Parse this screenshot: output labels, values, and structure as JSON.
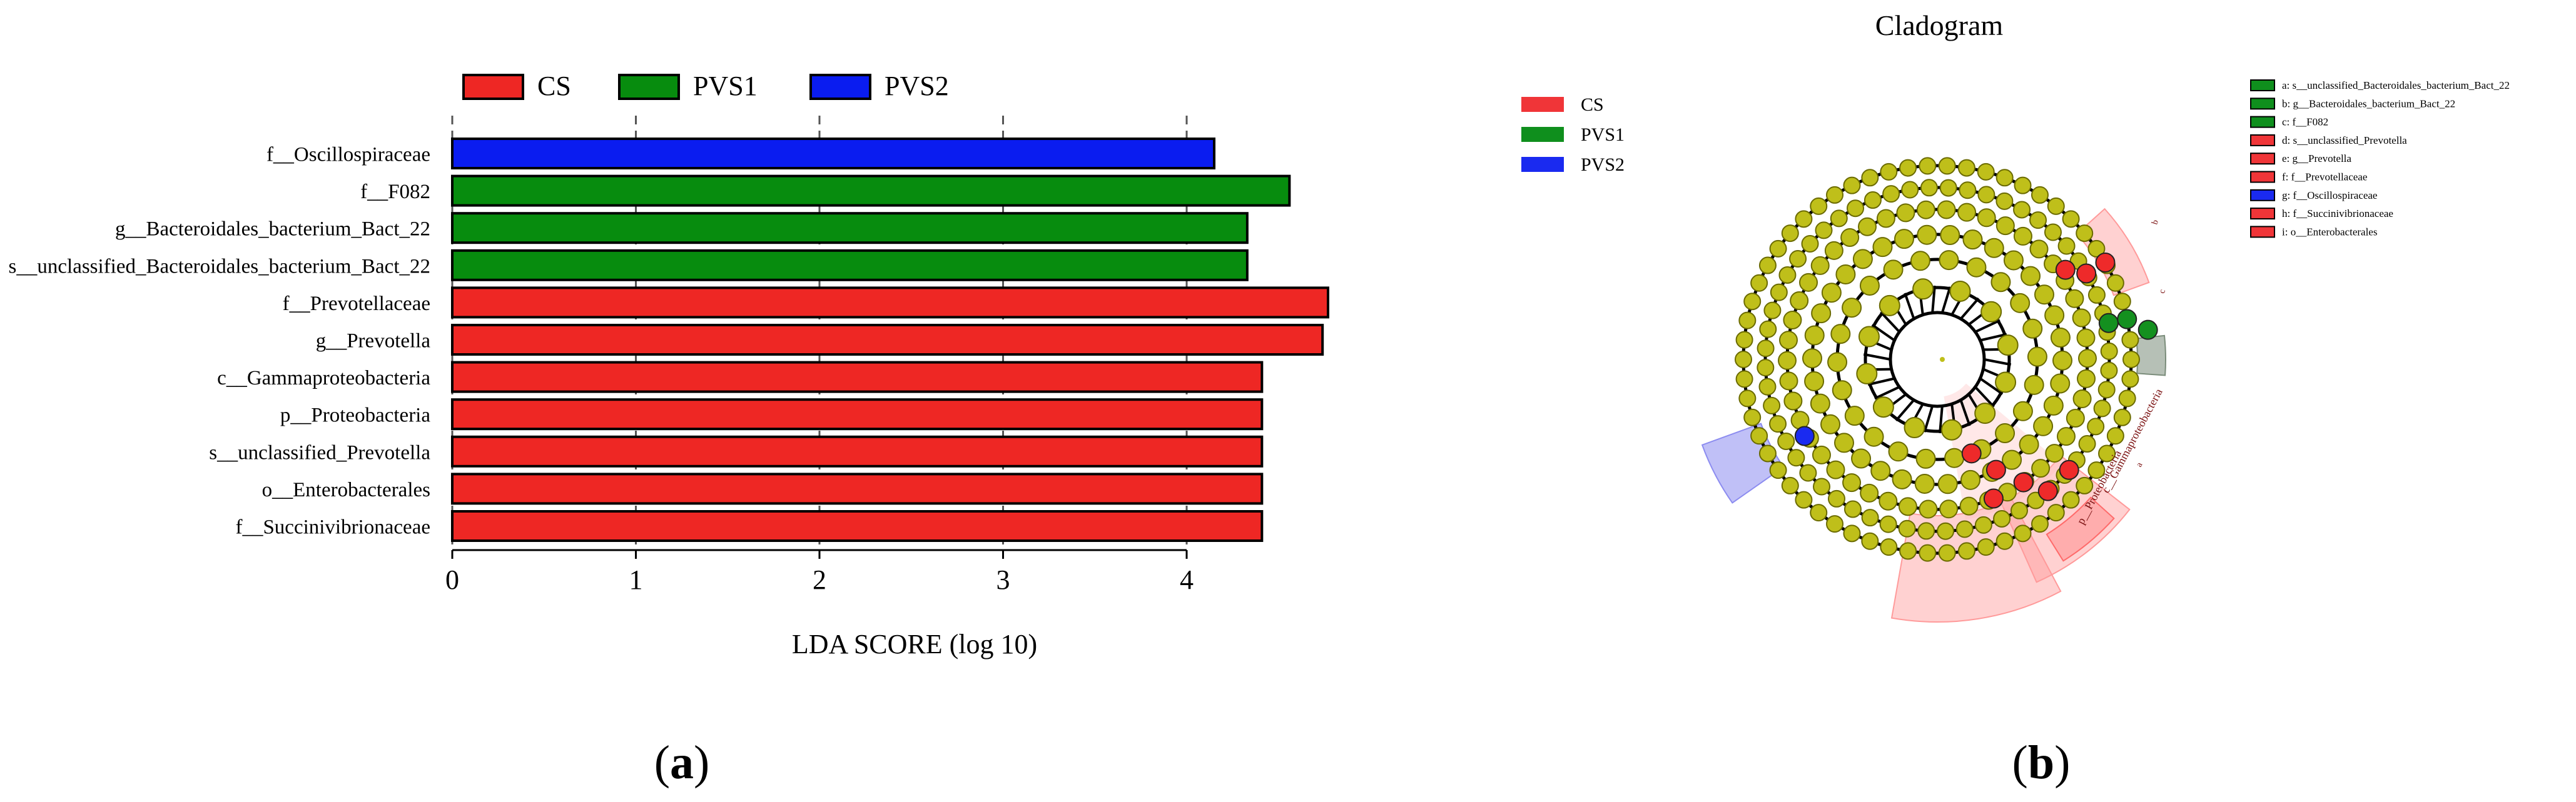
{
  "panel_a": {
    "label": "(a)",
    "legend": [
      {
        "name": "CS",
        "color": "#ee2724"
      },
      {
        "name": "PVS1",
        "color": "#078c0e"
      },
      {
        "name": "PVS2",
        "color": "#0a1cf0"
      }
    ],
    "xlabel": "LDA SCORE (log 10)"
  },
  "chart_data": {
    "type": "bar",
    "orientation": "horizontal",
    "xlabel": "LDA SCORE (log 10)",
    "xlim": [
      0,
      4.8
    ],
    "xticks": [
      "0",
      "1",
      "2",
      "3",
      "4"
    ],
    "grid": "vertical dashed",
    "legend_position": "top",
    "categories": [
      "f__Oscillospiraceae",
      "f__F082",
      "g__Bacteroidales_bacterium_Bact_22",
      "s__unclassified_Bacteroidales_bacterium_Bact_22",
      "f__Prevotellaceae",
      "g__Prevotella",
      "c__Gammaproteobacteria",
      "p__Proteobacteria",
      "s__unclassified_Prevotella",
      "o__Enterobacterales",
      "f__Succinivibrionaceae"
    ],
    "values": [
      4.15,
      4.56,
      4.33,
      4.33,
      4.77,
      4.74,
      4.41,
      4.41,
      4.41,
      4.41,
      4.41
    ],
    "groups": [
      "PVS2",
      "PVS1",
      "PVS1",
      "PVS1",
      "CS",
      "CS",
      "CS",
      "CS",
      "CS",
      "CS",
      "CS"
    ],
    "colors": {
      "CS": "#ee2724",
      "PVS1": "#078c0e",
      "PVS2": "#0a1cf0"
    }
  },
  "panel_b": {
    "label": "(b)",
    "title": "Cladogram",
    "legend_groups": [
      {
        "name": "CS",
        "color": "#f03538"
      },
      {
        "name": "PVS1",
        "color": "#0f8f1d"
      },
      {
        "name": "PVS2",
        "color": "#1a2af0"
      }
    ],
    "taxa_legend": [
      {
        "text": "a: s__unclassified_Bacteroidales_bacterium_Bact_22",
        "color": "#0f8f1d"
      },
      {
        "text": "b: g__Bacteroidales_bacterium_Bact_22",
        "color": "#0f8f1d"
      },
      {
        "text": "c: f__F082",
        "color": "#0f8f1d"
      },
      {
        "text": "d: s__unclassified_Prevotella",
        "color": "#f03538"
      },
      {
        "text": "e: g__Prevotella",
        "color": "#f03538"
      },
      {
        "text": "f: f__Prevotellaceae",
        "color": "#f03538"
      },
      {
        "text": "g: f__Oscillospiraceae",
        "color": "#1a2af0"
      },
      {
        "text": "h: f__Succinivibrionaceae",
        "color": "#f03538"
      },
      {
        "text": "i: o__Enterobacterales",
        "color": "#f03538"
      }
    ],
    "clade_labels": [
      "p__Proteobacteria",
      "c__Gammaproteobacteria",
      "a",
      "b",
      "c",
      "d",
      "e",
      "f",
      "g",
      "h",
      "i"
    ]
  }
}
